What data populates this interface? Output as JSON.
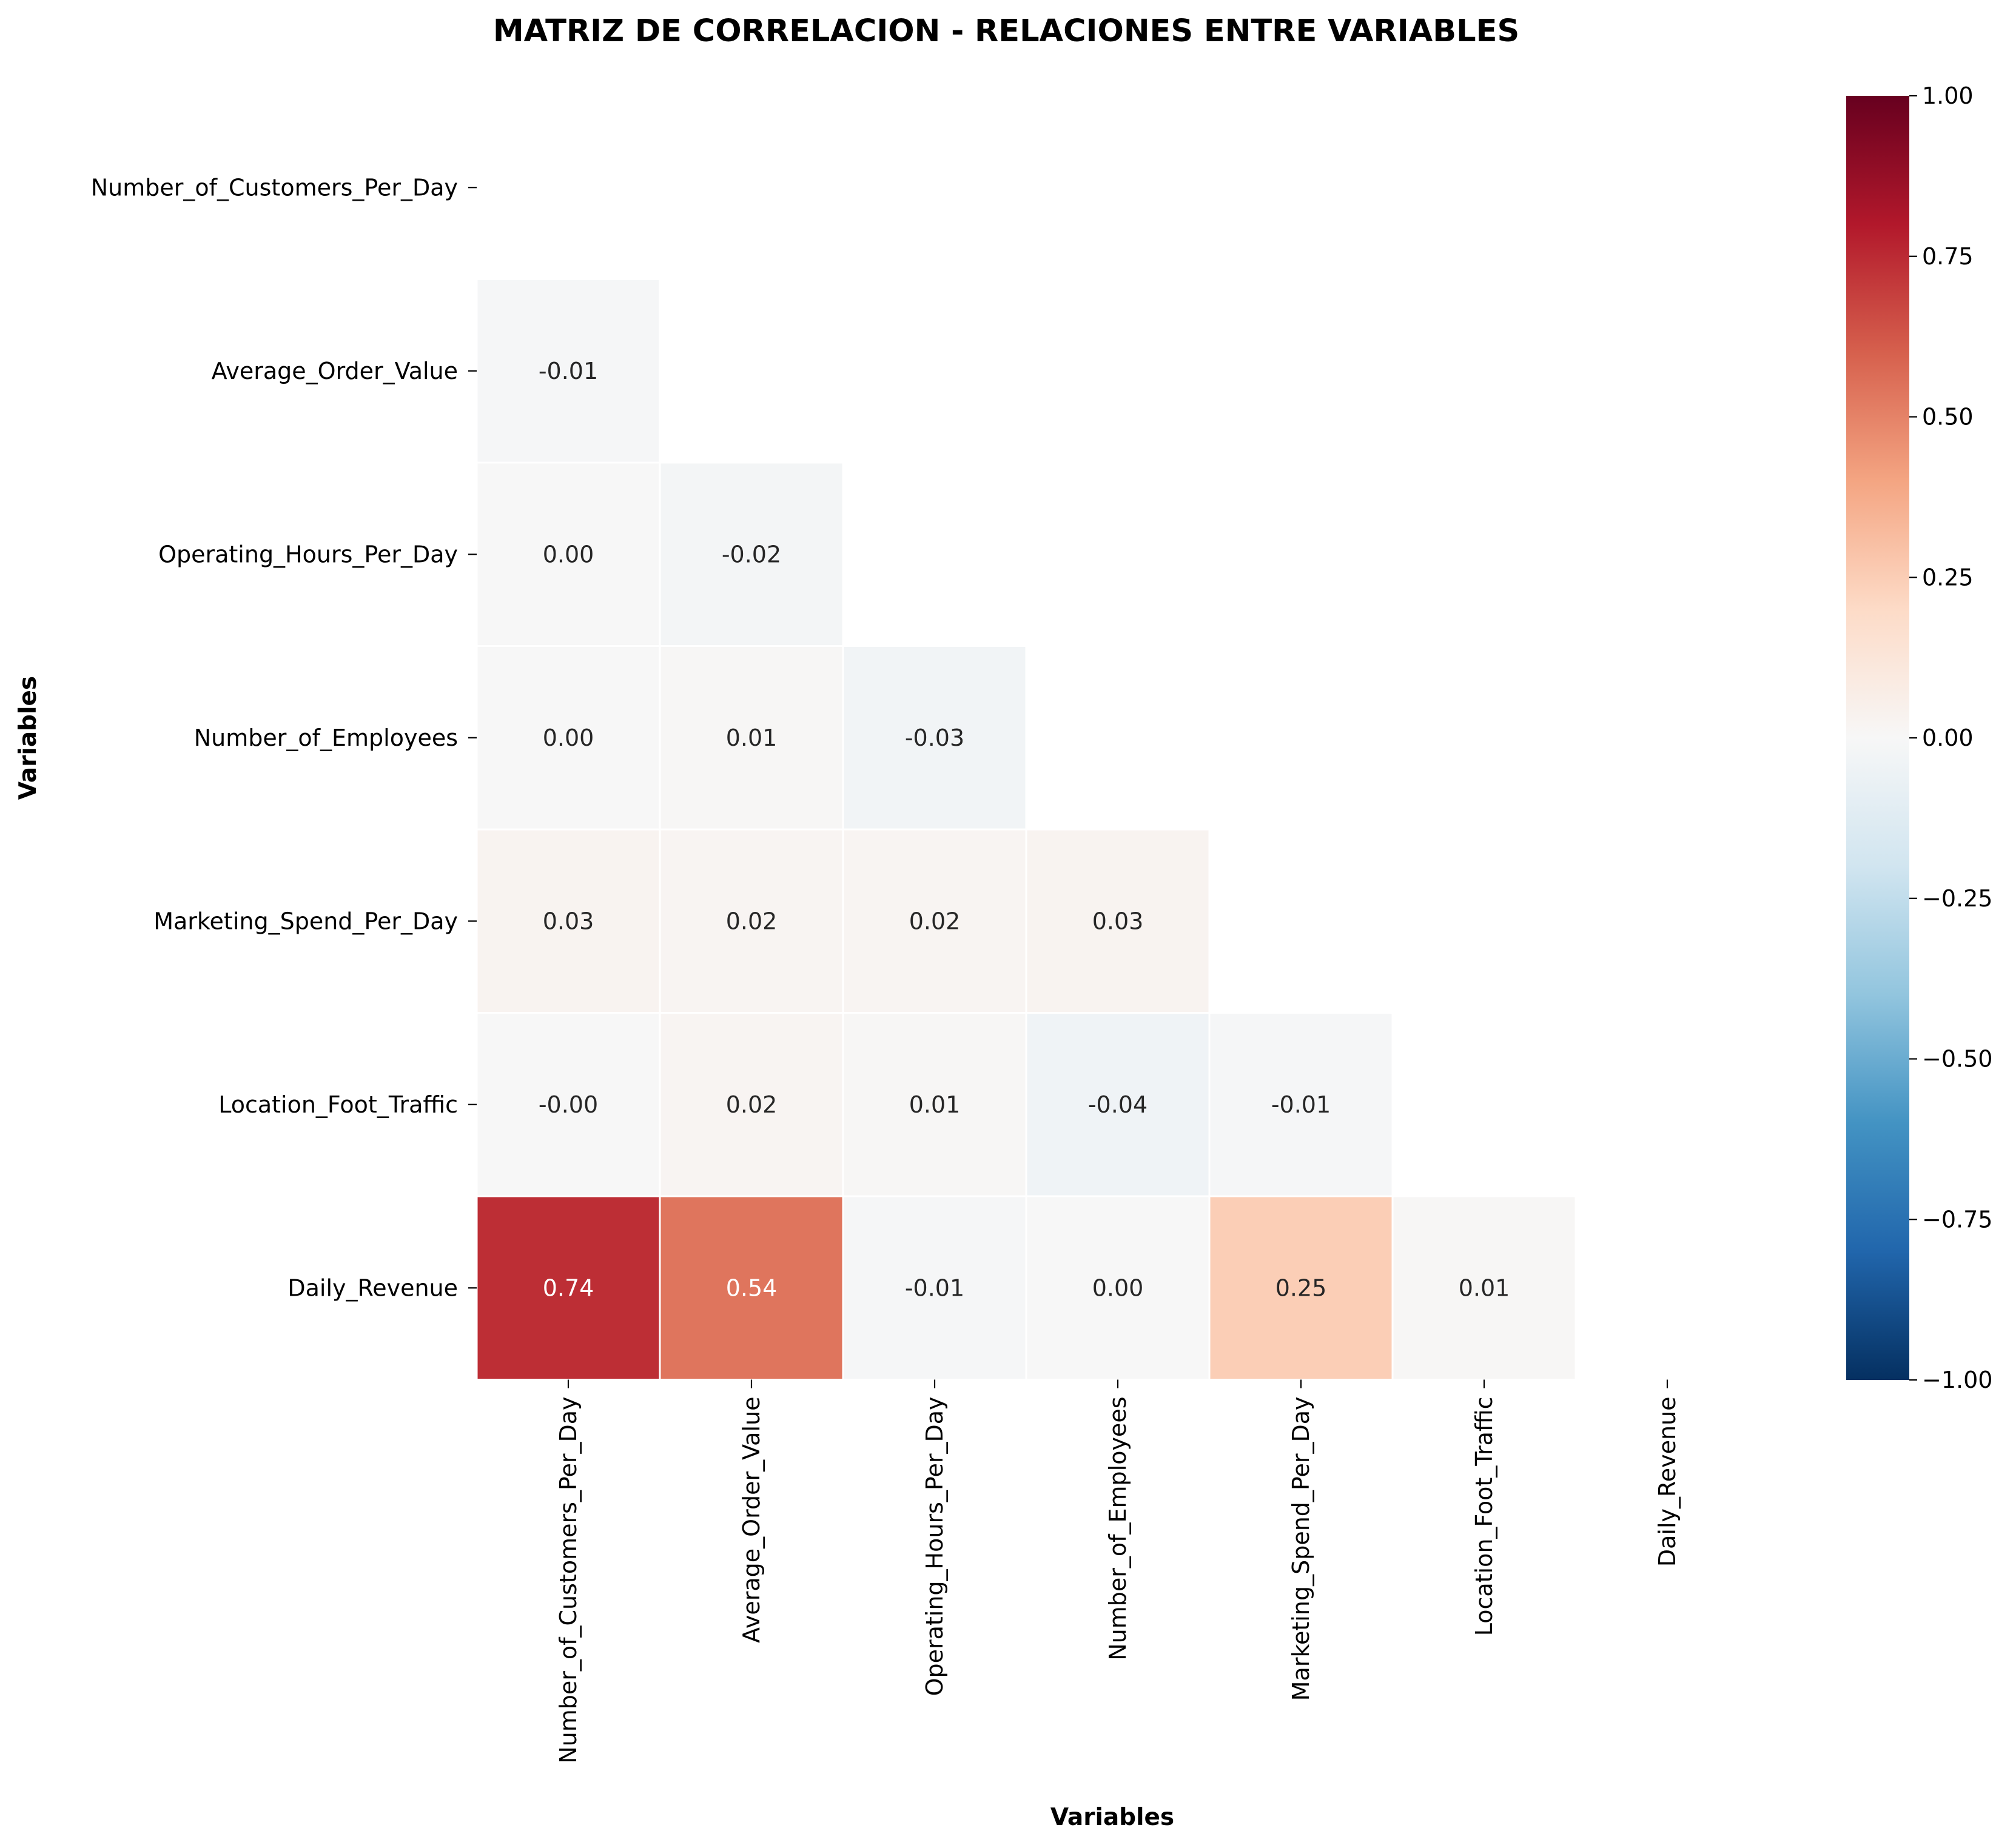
{
  "chart_data": {
    "type": "heatmap",
    "title": "MATRIZ DE CORRELACION - RELACIONES ENTRE VARIABLES",
    "xlabel": "Variables",
    "ylabel": "Variables",
    "variables": [
      "Number_of_Customers_Per_Day",
      "Average_Order_Value",
      "Operating_Hours_Per_Day",
      "Number_of_Employees",
      "Marketing_Spend_Per_Day",
      "Location_Foot_Traffic",
      "Daily_Revenue"
    ],
    "mask": "upper triangle incl. diagonal",
    "lower_triangle": [
      [],
      [
        "-0.01"
      ],
      [
        "0.00",
        "-0.02"
      ],
      [
        "0.00",
        "0.01",
        "-0.03"
      ],
      [
        "0.03",
        "0.02",
        "0.02",
        "0.03"
      ],
      [
        "-0.00",
        "0.02",
        "0.01",
        "-0.04",
        "-0.01"
      ],
      [
        "0.74",
        "0.54",
        "-0.01",
        "0.00",
        "0.25",
        "0.01"
      ]
    ],
    "colormap": "RdBu_r",
    "vmin": -1.0,
    "vmax": 1.0,
    "colorbar_ticks": [
      "1.00",
      "0.75",
      "0.50",
      "0.25",
      "0.00",
      "−0.25",
      "−0.50",
      "−0.75",
      "−1.00"
    ],
    "colorbar_tick_values": [
      1.0,
      0.75,
      0.5,
      0.25,
      0.0,
      -0.25,
      -0.5,
      -0.75,
      -1.0
    ]
  }
}
